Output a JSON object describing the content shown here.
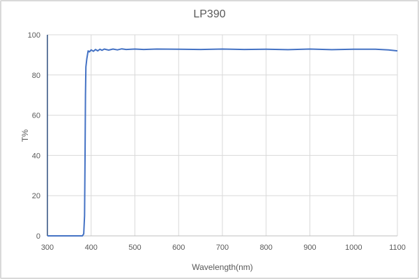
{
  "chart_data": {
    "type": "line",
    "title": "LP390",
    "xlabel": "Wavelength(nm)",
    "ylabel": "T%",
    "xlim": [
      300,
      1100
    ],
    "ylim": [
      0,
      100
    ],
    "x_ticks": [
      300,
      400,
      500,
      600,
      700,
      800,
      900,
      1000,
      1100
    ],
    "y_ticks": [
      0,
      20,
      40,
      60,
      80,
      100
    ],
    "grid": true,
    "legend": null,
    "series": [
      {
        "name": "LP390",
        "color": "#4472c4",
        "x": [
          300,
          350,
          380,
          383,
          385,
          386,
          387,
          388,
          390,
          393,
          396,
          400,
          405,
          410,
          415,
          420,
          425,
          430,
          440,
          450,
          460,
          470,
          480,
          500,
          520,
          550,
          600,
          650,
          700,
          750,
          800,
          850,
          900,
          950,
          1000,
          1050,
          1080,
          1100
        ],
        "y": [
          0,
          0,
          0,
          1,
          10,
          40,
          70,
          84,
          88,
          92,
          91.5,
          92.5,
          91.8,
          92.7,
          92.0,
          92.8,
          92.3,
          92.9,
          92.4,
          92.9,
          92.5,
          93.0,
          92.7,
          92.9,
          92.7,
          92.9,
          92.8,
          92.7,
          92.9,
          92.7,
          92.8,
          92.6,
          92.9,
          92.6,
          92.8,
          92.8,
          92.5,
          92.0
        ]
      }
    ]
  }
}
